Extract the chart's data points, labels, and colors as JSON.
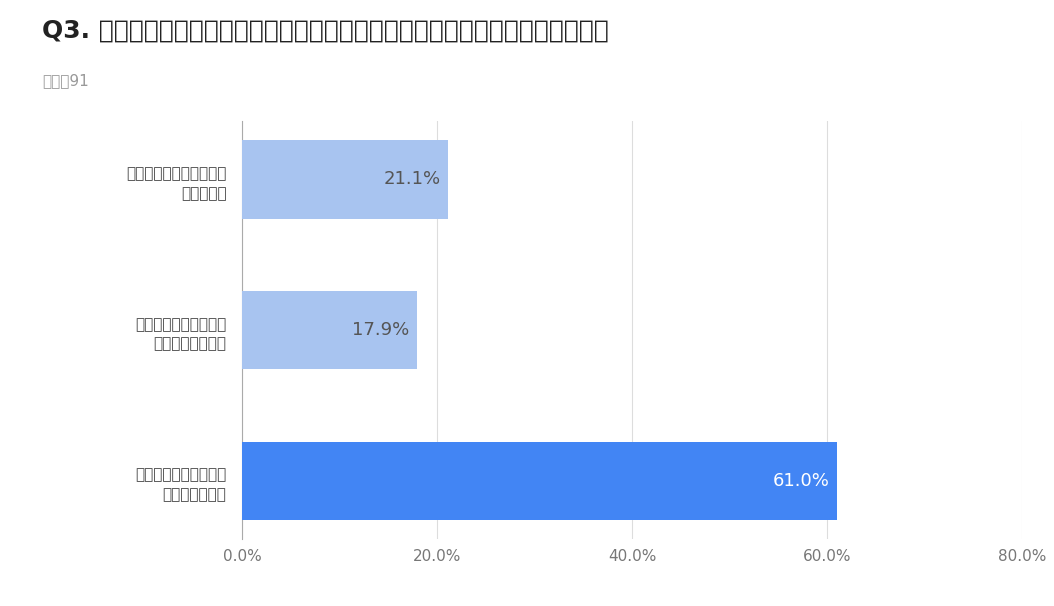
{
  "title": "Q3. 今後、オンラインでの顧客コミュニケーションの実施を検討していますか？",
  "subtitle": "回答数91",
  "categories": [
    "オンラインでの実施は\n検討していない",
    "今後オンラインでの実\n施を検討している",
    "すでにオンラインでも実\n施している"
  ],
  "values": [
    61.0,
    17.9,
    21.1
  ],
  "bar_colors": [
    "#4285F4",
    "#A8C4F0",
    "#A8C4F0"
  ],
  "label_colors": [
    "#ffffff",
    "#555555",
    "#555555"
  ],
  "labels": [
    "61.0%",
    "17.9%",
    "21.1%"
  ],
  "xlim": [
    0,
    80
  ],
  "xticks": [
    0,
    20,
    40,
    60,
    80
  ],
  "xticklabels": [
    "0.0%",
    "20.0%",
    "40.0%",
    "60.0%",
    "80.0%"
  ],
  "title_fontsize": 18,
  "subtitle_fontsize": 11,
  "label_fontsize": 13,
  "tick_fontsize": 11,
  "ylabel_fontsize": 11,
  "background_color": "#ffffff",
  "grid_color": "#dddddd",
  "title_color": "#222222",
  "subtitle_color": "#999999",
  "tick_color": "#777777",
  "ylabel_color": "#444444"
}
